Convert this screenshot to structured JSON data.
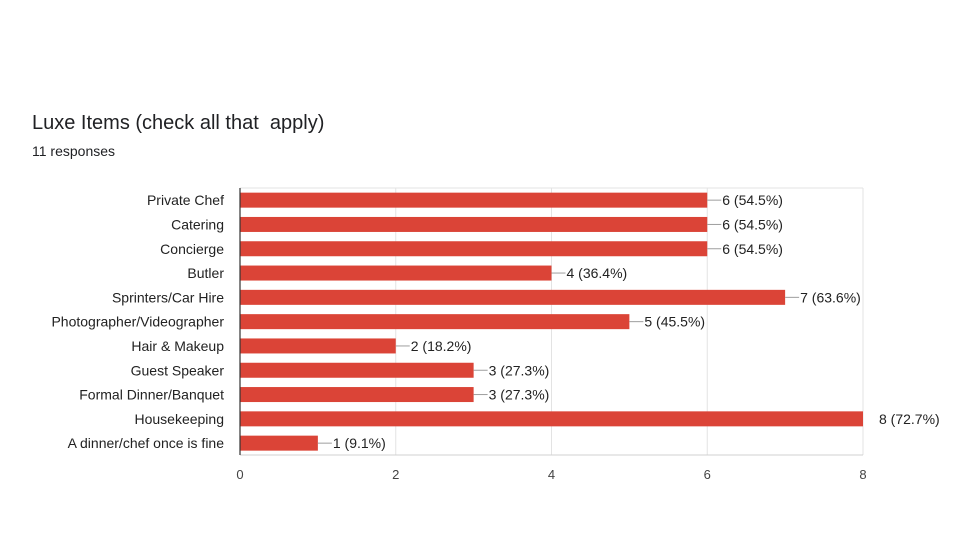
{
  "chart_data": {
    "type": "bar",
    "orientation": "horizontal",
    "title": "Luxe Items (check all that  apply)",
    "subtitle": "11 responses",
    "categories": [
      "Private Chef",
      "Catering",
      "Concierge",
      "Butler",
      "Sprinters/Car Hire",
      "Photographer/Videographer",
      "Hair & Makeup",
      "Guest Speaker",
      "Formal Dinner/Banquet",
      "Housekeeping",
      "A dinner/chef once is fine"
    ],
    "values": [
      6,
      6,
      6,
      4,
      7,
      5,
      2,
      3,
      3,
      8,
      1
    ],
    "data_labels": [
      "6 (54.5%)",
      "6 (54.5%)",
      "6 (54.5%)",
      "4 (36.4%)",
      "7 (63.6%)",
      "5 (45.5%)",
      "2 (18.2%)",
      "3 (27.3%)",
      "3 (27.3%)",
      "8 (72.7%)",
      "1 (9.1%)"
    ],
    "xlim": [
      0,
      8
    ],
    "xticks": [
      "0",
      "2",
      "4",
      "6",
      "8"
    ],
    "xlabel": "",
    "ylabel": "",
    "grid": true,
    "legend": "none",
    "bar_color": "#DB4437"
  }
}
